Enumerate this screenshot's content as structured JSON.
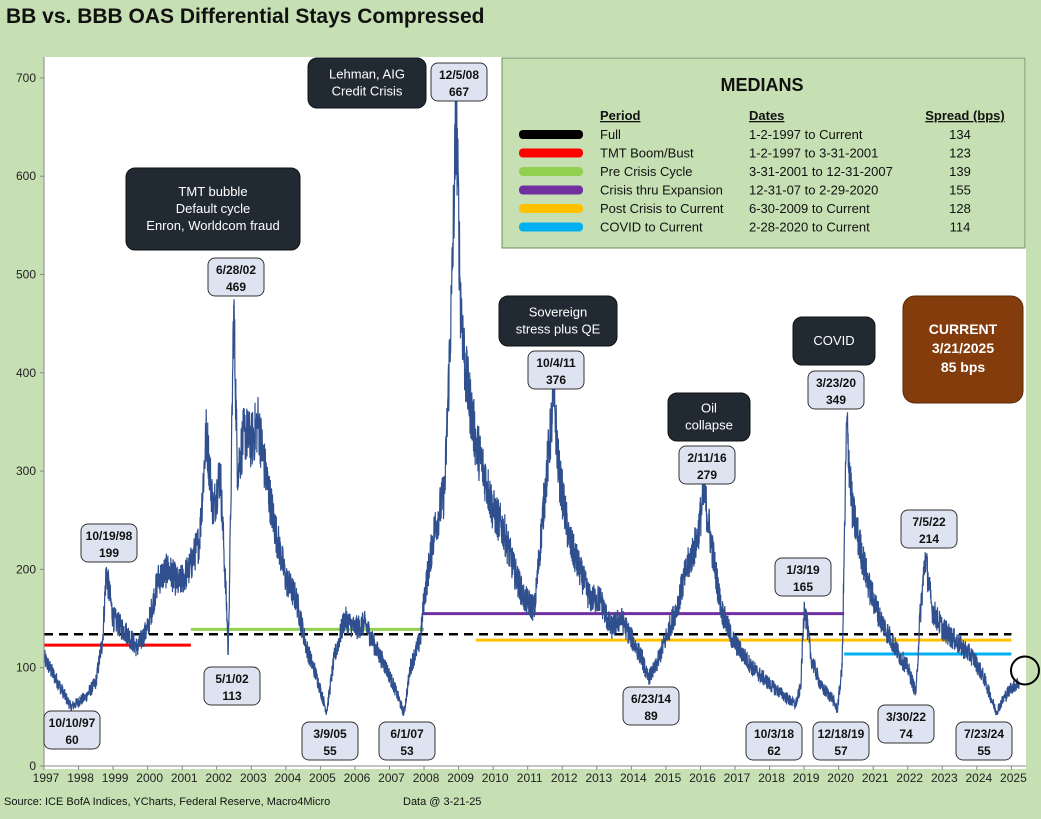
{
  "chart_data": {
    "type": "line",
    "title": "BB vs. BBB OAS Differential Stays Compressed",
    "ylim": [
      0,
      710
    ],
    "yticks": [
      0,
      100,
      200,
      300,
      400,
      500,
      600,
      700
    ],
    "xlim": [
      1997,
      2025.35
    ],
    "xticks": [
      1997,
      1998,
      1999,
      2000,
      2001,
      2002,
      2003,
      2004,
      2005,
      2006,
      2007,
      2008,
      2009,
      2010,
      2011,
      2012,
      2013,
      2014,
      2015,
      2016,
      2017,
      2018,
      2019,
      2020,
      2021,
      2022,
      2023,
      2024,
      2025
    ],
    "series": [
      {
        "color": "#2f4f8f",
        "anchors": [
          [
            1997.0,
            110
          ],
          [
            1997.4,
            85
          ],
          [
            1997.78,
            60
          ],
          [
            1998.2,
            70
          ],
          [
            1998.5,
            85
          ],
          [
            1998.7,
            130
          ],
          [
            1998.8,
            199
          ],
          [
            1999.0,
            150
          ],
          [
            1999.4,
            135
          ],
          [
            1999.7,
            120
          ],
          [
            2000.0,
            140
          ],
          [
            2000.3,
            190
          ],
          [
            2000.6,
            200
          ],
          [
            2000.9,
            185
          ],
          [
            2001.2,
            200
          ],
          [
            2001.5,
            230
          ],
          [
            2001.7,
            340
          ],
          [
            2001.9,
            260
          ],
          [
            2002.1,
            300
          ],
          [
            2002.3,
            150
          ],
          [
            2002.33,
            113
          ],
          [
            2002.4,
            250
          ],
          [
            2002.49,
            469
          ],
          [
            2002.6,
            300
          ],
          [
            2002.8,
            340
          ],
          [
            2003.0,
            330
          ],
          [
            2003.2,
            350
          ],
          [
            2003.4,
            300
          ],
          [
            2003.7,
            240
          ],
          [
            2004.0,
            190
          ],
          [
            2004.3,
            170
          ],
          [
            2004.6,
            120
          ],
          [
            2004.9,
            90
          ],
          [
            2005.18,
            55
          ],
          [
            2005.4,
            110
          ],
          [
            2005.7,
            150
          ],
          [
            2006.0,
            140
          ],
          [
            2006.3,
            145
          ],
          [
            2006.6,
            120
          ],
          [
            2006.9,
            100
          ],
          [
            2007.2,
            75
          ],
          [
            2007.42,
            53
          ],
          [
            2007.6,
            100
          ],
          [
            2007.9,
            130
          ],
          [
            2008.0,
            170
          ],
          [
            2008.3,
            240
          ],
          [
            2008.6,
            280
          ],
          [
            2008.8,
            480
          ],
          [
            2008.93,
            667
          ],
          [
            2009.05,
            480
          ],
          [
            2009.2,
            400
          ],
          [
            2009.5,
            330
          ],
          [
            2009.8,
            290
          ],
          [
            2010.0,
            260
          ],
          [
            2010.3,
            240
          ],
          [
            2010.6,
            200
          ],
          [
            2010.9,
            170
          ],
          [
            2011.2,
            160
          ],
          [
            2011.5,
            280
          ],
          [
            2011.76,
            376
          ],
          [
            2011.9,
            300
          ],
          [
            2012.2,
            230
          ],
          [
            2012.5,
            200
          ],
          [
            2012.8,
            170
          ],
          [
            2013.1,
            170
          ],
          [
            2013.4,
            140
          ],
          [
            2013.7,
            150
          ],
          [
            2014.0,
            130
          ],
          [
            2014.3,
            110
          ],
          [
            2014.48,
            89
          ],
          [
            2014.7,
            100
          ],
          [
            2015.0,
            130
          ],
          [
            2015.3,
            160
          ],
          [
            2015.6,
            200
          ],
          [
            2015.9,
            230
          ],
          [
            2016.11,
            279
          ],
          [
            2016.3,
            230
          ],
          [
            2016.6,
            160
          ],
          [
            2016.9,
            130
          ],
          [
            2017.2,
            115
          ],
          [
            2017.5,
            100
          ],
          [
            2017.8,
            90
          ],
          [
            2018.1,
            80
          ],
          [
            2018.3,
            75
          ],
          [
            2018.75,
            62
          ],
          [
            2018.9,
            80
          ],
          [
            2019.01,
            165
          ],
          [
            2019.2,
            110
          ],
          [
            2019.5,
            80
          ],
          [
            2019.8,
            70
          ],
          [
            2019.96,
            57
          ],
          [
            2020.1,
            100
          ],
          [
            2020.23,
            349
          ],
          [
            2020.4,
            260
          ],
          [
            2020.7,
            210
          ],
          [
            2020.9,
            180
          ],
          [
            2021.2,
            150
          ],
          [
            2021.5,
            130
          ],
          [
            2021.8,
            110
          ],
          [
            2022.0,
            100
          ],
          [
            2022.24,
            74
          ],
          [
            2022.35,
            150
          ],
          [
            2022.51,
            214
          ],
          [
            2022.7,
            160
          ],
          [
            2023.0,
            140
          ],
          [
            2023.3,
            130
          ],
          [
            2023.6,
            120
          ],
          [
            2023.9,
            110
          ],
          [
            2024.2,
            90
          ],
          [
            2024.56,
            55
          ],
          [
            2024.8,
            70
          ],
          [
            2025.0,
            80
          ],
          [
            2025.22,
            85
          ]
        ]
      }
    ],
    "medians": [
      {
        "color": "#000000",
        "dashed": true,
        "x": [
          1997.0,
          2025.0
        ],
        "y": 134
      },
      {
        "color": "#ff0000",
        "dashed": false,
        "x": [
          1997.0,
          2001.25
        ],
        "y": 123
      },
      {
        "color": "#92d050",
        "dashed": false,
        "x": [
          2001.25,
          2008.0
        ],
        "y": 139
      },
      {
        "color": "#7030a0",
        "dashed": false,
        "x": [
          2008.0,
          2020.16
        ],
        "y": 155
      },
      {
        "color": "#ffc000",
        "dashed": false,
        "x": [
          2009.5,
          2025.0
        ],
        "y": 128
      },
      {
        "color": "#00b0f0",
        "dashed": false,
        "x": [
          2020.16,
          2025.0
        ],
        "y": 114
      }
    ],
    "annotations": [
      {
        "date": "10/10/97",
        "value": "60"
      },
      {
        "date": "10/19/98",
        "value": "199"
      },
      {
        "date": "6/28/02",
        "value": "469"
      },
      {
        "date": "5/1/02",
        "value": "113"
      },
      {
        "date": "3/9/05",
        "value": "55"
      },
      {
        "date": "6/1/07",
        "value": "53"
      },
      {
        "date": "12/5/08",
        "value": "667"
      },
      {
        "date": "10/4/11",
        "value": "376"
      },
      {
        "date": "6/23/14",
        "value": "89"
      },
      {
        "date": "2/11/16",
        "value": "279"
      },
      {
        "date": "10/3/18",
        "value": "62"
      },
      {
        "date": "1/3/19",
        "value": "165"
      },
      {
        "date": "12/18/19",
        "value": "57"
      },
      {
        "date": "3/23/20",
        "value": "349"
      },
      {
        "date": "3/30/22",
        "value": "74"
      },
      {
        "date": "7/5/22",
        "value": "214"
      },
      {
        "date": "7/23/24",
        "value": "55"
      }
    ],
    "event_labels": [
      [
        "TMT bubble",
        "Default cycle",
        "Enron, Worldcom fraud"
      ],
      [
        "Lehman, AIG",
        "Credit Crisis"
      ],
      [
        "Sovereign",
        "stress plus QE"
      ],
      [
        "Oil",
        "collapse"
      ],
      [
        "COVID"
      ]
    ],
    "current": {
      "lines": [
        "CURRENT",
        "3/21/2025",
        "85 bps"
      ],
      "color": "#843c0c"
    },
    "medians_table": {
      "title": "MEDIANS",
      "headers": [
        "Period",
        "Dates",
        "Spread (bps)"
      ],
      "rows": [
        {
          "color": "#000000",
          "period": "Full",
          "dates": "1-2-1997  to Current",
          "spread": "134"
        },
        {
          "color": "#ff0000",
          "period": "TMT Boom/Bust",
          "dates": "1-2-1997  to 3-31-2001",
          "spread": "123"
        },
        {
          "color": "#92d050",
          "period": "Pre Crisis Cycle",
          "dates": "3-31-2001  to 12-31-2007",
          "spread": "139"
        },
        {
          "color": "#7030a0",
          "period": "Crisis thru Expansion",
          "dates": "12-31-07  to 2-29-2020",
          "spread": "155"
        },
        {
          "color": "#ffc000",
          "period": "Post Crisis to Current",
          "dates": "6-30-2009  to Current",
          "spread": "128"
        },
        {
          "color": "#00b0f0",
          "period": "COVID to Current",
          "dates": " 2-28-2020  to Current",
          "spread": "114"
        }
      ]
    }
  },
  "footer": {
    "source": "Source: ICE BofA Indices, YCharts, Federal Reserve, Macro4Micro",
    "data_note": "Data @ 3-21-25"
  }
}
